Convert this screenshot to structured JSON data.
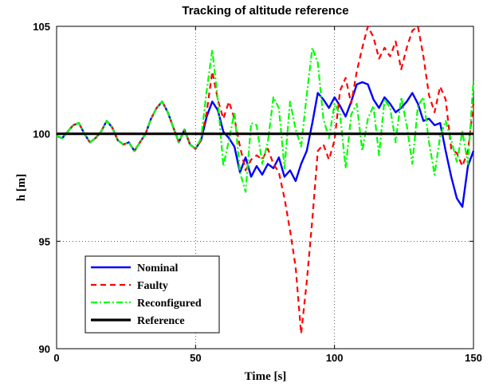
{
  "chart_data": {
    "type": "line",
    "title": "Tracking of altitude reference",
    "xlabel": "Time [s]",
    "ylabel": "h [m]",
    "xlim": [
      0,
      150
    ],
    "ylim": [
      90,
      105
    ],
    "x_ticks": [
      0,
      50,
      100,
      150
    ],
    "y_ticks": [
      90,
      95,
      100,
      105
    ],
    "grid": true,
    "legend_position": "bottom-left",
    "series": [
      {
        "name": "Nominal",
        "color": "#0000ff",
        "style": "solid",
        "points": [
          [
            0,
            99.9
          ],
          [
            2,
            99.8
          ],
          [
            4,
            100.1
          ],
          [
            6,
            100.4
          ],
          [
            8,
            100.5
          ],
          [
            10,
            100.0
          ],
          [
            12,
            99.6
          ],
          [
            14,
            99.8
          ],
          [
            16,
            100.1
          ],
          [
            18,
            100.6
          ],
          [
            20,
            100.3
          ],
          [
            22,
            99.7
          ],
          [
            24,
            99.5
          ],
          [
            26,
            99.6
          ],
          [
            28,
            99.2
          ],
          [
            30,
            99.6
          ],
          [
            32,
            100.0
          ],
          [
            34,
            100.7
          ],
          [
            36,
            101.2
          ],
          [
            38,
            101.5
          ],
          [
            40,
            101.0
          ],
          [
            42,
            100.3
          ],
          [
            44,
            99.6
          ],
          [
            46,
            100.2
          ],
          [
            48,
            99.5
          ],
          [
            50,
            99.3
          ],
          [
            52,
            99.7
          ],
          [
            54,
            100.8
          ],
          [
            56,
            101.5
          ],
          [
            58,
            101.1
          ],
          [
            60,
            100.1
          ],
          [
            62,
            99.8
          ],
          [
            64,
            99.4
          ],
          [
            66,
            98.2
          ],
          [
            68,
            98.9
          ],
          [
            70,
            98.0
          ],
          [
            72,
            98.5
          ],
          [
            74,
            98.1
          ],
          [
            76,
            98.6
          ],
          [
            78,
            98.4
          ],
          [
            80,
            98.9
          ],
          [
            82,
            98.0
          ],
          [
            84,
            98.3
          ],
          [
            86,
            97.8
          ],
          [
            88,
            98.6
          ],
          [
            90,
            99.2
          ],
          [
            92,
            100.5
          ],
          [
            94,
            101.9
          ],
          [
            96,
            101.6
          ],
          [
            98,
            101.2
          ],
          [
            100,
            101.7
          ],
          [
            102,
            101.3
          ],
          [
            104,
            100.8
          ],
          [
            106,
            101.5
          ],
          [
            108,
            102.3
          ],
          [
            110,
            102.4
          ],
          [
            112,
            102.3
          ],
          [
            114,
            101.6
          ],
          [
            116,
            101.2
          ],
          [
            118,
            101.7
          ],
          [
            120,
            101.4
          ],
          [
            122,
            101.0
          ],
          [
            124,
            101.2
          ],
          [
            126,
            101.5
          ],
          [
            128,
            101.9
          ],
          [
            130,
            101.4
          ],
          [
            132,
            100.6
          ],
          [
            134,
            100.7
          ],
          [
            136,
            100.4
          ],
          [
            138,
            100.5
          ],
          [
            140,
            99.2
          ],
          [
            142,
            98.0
          ],
          [
            144,
            97.0
          ],
          [
            146,
            96.6
          ],
          [
            148,
            98.5
          ],
          [
            150,
            99.2
          ]
        ]
      },
      {
        "name": "Faulty",
        "color": "#ff0000",
        "style": "dashed",
        "points": [
          [
            0,
            99.9
          ],
          [
            2,
            99.8
          ],
          [
            4,
            100.1
          ],
          [
            6,
            100.4
          ],
          [
            8,
            100.5
          ],
          [
            10,
            100.0
          ],
          [
            12,
            99.6
          ],
          [
            14,
            99.8
          ],
          [
            16,
            100.1
          ],
          [
            18,
            100.6
          ],
          [
            20,
            100.3
          ],
          [
            22,
            99.7
          ],
          [
            24,
            99.5
          ],
          [
            26,
            99.6
          ],
          [
            28,
            99.2
          ],
          [
            30,
            99.6
          ],
          [
            32,
            100.0
          ],
          [
            34,
            100.7
          ],
          [
            36,
            101.2
          ],
          [
            38,
            101.5
          ],
          [
            40,
            101.0
          ],
          [
            42,
            100.3
          ],
          [
            44,
            99.6
          ],
          [
            46,
            100.2
          ],
          [
            48,
            99.5
          ],
          [
            50,
            99.3
          ],
          [
            52,
            99.7
          ],
          [
            54,
            101.0
          ],
          [
            56,
            102.9
          ],
          [
            58,
            101.6
          ],
          [
            60,
            100.7
          ],
          [
            62,
            101.5
          ],
          [
            64,
            100.7
          ],
          [
            66,
            99.4
          ],
          [
            68,
            98.3
          ],
          [
            70,
            98.8
          ],
          [
            72,
            99.0
          ],
          [
            74,
            98.8
          ],
          [
            76,
            99.3
          ],
          [
            78,
            98.6
          ],
          [
            80,
            98.2
          ],
          [
            82,
            97.0
          ],
          [
            84,
            95.5
          ],
          [
            86,
            93.8
          ],
          [
            88,
            90.7
          ],
          [
            90,
            93.1
          ],
          [
            92,
            96.0
          ],
          [
            94,
            99.2
          ],
          [
            96,
            99.5
          ],
          [
            98,
            98.8
          ],
          [
            100,
            99.7
          ],
          [
            102,
            102.0
          ],
          [
            104,
            102.6
          ],
          [
            106,
            101.4
          ],
          [
            108,
            102.9
          ],
          [
            110,
            104.0
          ],
          [
            112,
            105.0
          ],
          [
            114,
            104.5
          ],
          [
            116,
            103.5
          ],
          [
            118,
            104.0
          ],
          [
            120,
            103.6
          ],
          [
            122,
            104.3
          ],
          [
            124,
            103.0
          ],
          [
            126,
            104.0
          ],
          [
            128,
            104.8
          ],
          [
            130,
            105.0
          ],
          [
            132,
            103.6
          ],
          [
            134,
            101.8
          ],
          [
            136,
            101.0
          ],
          [
            138,
            102.2
          ],
          [
            140,
            101.6
          ],
          [
            142,
            99.3
          ],
          [
            144,
            99.1
          ],
          [
            146,
            98.5
          ],
          [
            148,
            99.2
          ],
          [
            150,
            101.4
          ]
        ]
      },
      {
        "name": "Reconfigured",
        "color": "#00ff00",
        "style": "dashdot",
        "points": [
          [
            0,
            99.9
          ],
          [
            2,
            99.8
          ],
          [
            4,
            100.1
          ],
          [
            6,
            100.4
          ],
          [
            8,
            100.5
          ],
          [
            10,
            100.0
          ],
          [
            12,
            99.6
          ],
          [
            14,
            99.8
          ],
          [
            16,
            100.1
          ],
          [
            18,
            100.6
          ],
          [
            20,
            100.3
          ],
          [
            22,
            99.7
          ],
          [
            24,
            99.5
          ],
          [
            26,
            99.6
          ],
          [
            28,
            99.2
          ],
          [
            30,
            99.6
          ],
          [
            32,
            100.0
          ],
          [
            34,
            100.7
          ],
          [
            36,
            101.2
          ],
          [
            38,
            101.5
          ],
          [
            40,
            101.0
          ],
          [
            42,
            100.3
          ],
          [
            44,
            99.6
          ],
          [
            46,
            100.2
          ],
          [
            48,
            99.5
          ],
          [
            50,
            99.3
          ],
          [
            52,
            99.8
          ],
          [
            54,
            102.0
          ],
          [
            56,
            103.9
          ],
          [
            58,
            101.6
          ],
          [
            60,
            98.5
          ],
          [
            62,
            99.7
          ],
          [
            64,
            101.0
          ],
          [
            66,
            98.2
          ],
          [
            68,
            97.3
          ],
          [
            70,
            100.5
          ],
          [
            72,
            100.4
          ],
          [
            74,
            98.6
          ],
          [
            76,
            99.6
          ],
          [
            78,
            101.7
          ],
          [
            80,
            101.2
          ],
          [
            82,
            98.4
          ],
          [
            84,
            101.5
          ],
          [
            86,
            100.2
          ],
          [
            88,
            99.4
          ],
          [
            90,
            101.8
          ],
          [
            92,
            104.0
          ],
          [
            94,
            103.3
          ],
          [
            96,
            100.7
          ],
          [
            98,
            99.8
          ],
          [
            100,
            101.4
          ],
          [
            102,
            100.9
          ],
          [
            104,
            98.4
          ],
          [
            106,
            100.9
          ],
          [
            108,
            101.4
          ],
          [
            110,
            99.2
          ],
          [
            112,
            100.7
          ],
          [
            114,
            101.3
          ],
          [
            116,
            99.0
          ],
          [
            118,
            101.6
          ],
          [
            120,
            101.2
          ],
          [
            122,
            99.6
          ],
          [
            124,
            101.7
          ],
          [
            126,
            100.4
          ],
          [
            128,
            98.6
          ],
          [
            130,
            101.3
          ],
          [
            132,
            101.7
          ],
          [
            134,
            99.6
          ],
          [
            136,
            98.1
          ],
          [
            138,
            99.9
          ],
          [
            140,
            100.6
          ],
          [
            142,
            99.7
          ],
          [
            144,
            98.7
          ],
          [
            146,
            100.1
          ],
          [
            148,
            98.6
          ],
          [
            150,
            102.5
          ]
        ]
      },
      {
        "name": "Reference",
        "color": "#000000",
        "style": "solid-thick",
        "points": [
          [
            0,
            100
          ],
          [
            150,
            100
          ]
        ]
      }
    ]
  }
}
